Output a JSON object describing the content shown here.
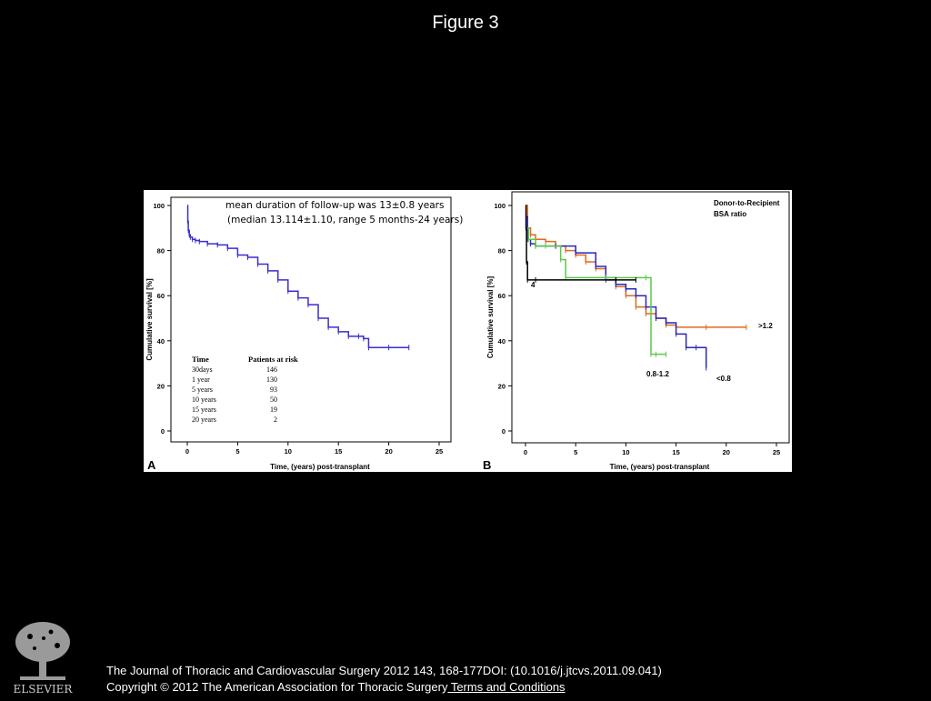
{
  "header": {
    "title": "Figure 3"
  },
  "chart_data": [
    {
      "panel": "A",
      "type": "line",
      "title": "mean duration of follow-up was 13±0.8 years",
      "subtitle": "(median 13.114±1.10, range 5 months-24 years)",
      "xlabel": "Time, (years) post-transplant",
      "ylabel": "Cumulative survival [%]",
      "xlim": [
        0,
        25
      ],
      "ylim": [
        0,
        100
      ],
      "xticks": [
        0,
        5,
        10,
        15,
        20,
        25
      ],
      "yticks": [
        0,
        20,
        40,
        60,
        80,
        100
      ],
      "series": [
        {
          "color": "#3a2fcc",
          "x": [
            0,
            0.05,
            0.1,
            0.2,
            0.3,
            0.5,
            0.8,
            1.2,
            2,
            3,
            4,
            5,
            6,
            7,
            8,
            9,
            10,
            11,
            12,
            13,
            14,
            15,
            16,
            17,
            17.5,
            18,
            20,
            22
          ],
          "y": [
            100,
            93,
            89,
            87,
            86,
            85,
            84.5,
            84,
            83,
            82.5,
            81,
            78,
            77,
            74,
            71,
            67,
            62,
            59,
            56,
            50,
            46,
            44,
            42,
            42,
            41,
            37,
            37,
            37
          ]
        }
      ],
      "risk_table": {
        "header": [
          "Time",
          "Patients at risk"
        ],
        "rows": [
          [
            "30days",
            "146"
          ],
          [
            "1 year",
            "130"
          ],
          [
            "5 years",
            "93"
          ],
          [
            "10 years",
            "50"
          ],
          [
            "15 years",
            "19"
          ],
          [
            "20 years",
            "2"
          ]
        ]
      }
    },
    {
      "panel": "B",
      "type": "line",
      "legend_title_1": "Donor-to-Recipient",
      "legend_title_2": "BSA ratio",
      "xlabel": "Time, (years) post-transplant",
      "ylabel": "Cumulative survival [%]",
      "xlim": [
        0,
        25
      ],
      "ylim": [
        0,
        100
      ],
      "xticks": [
        0,
        5,
        10,
        15,
        20,
        25
      ],
      "yticks": [
        0,
        20,
        40,
        60,
        80,
        100
      ],
      "series": [
        {
          "name": ">1.2",
          "color": "#e06a1e",
          "x": [
            0,
            0.2,
            0.5,
            1,
            2,
            3,
            4,
            5,
            6,
            7,
            8,
            9,
            10,
            11,
            12,
            13,
            14,
            15,
            18,
            22
          ],
          "y": [
            100,
            90,
            87,
            85,
            84,
            82,
            80,
            78,
            75,
            72,
            68,
            64,
            60,
            55,
            52,
            50,
            47,
            46,
            46,
            46
          ]
        },
        {
          "name": "<0.8",
          "color": "#2a27b8",
          "x": [
            0,
            0.2,
            0.5,
            1,
            3,
            5,
            7,
            8,
            9,
            10,
            11,
            12,
            13,
            14,
            15,
            16,
            17,
            18
          ],
          "y": [
            95,
            85,
            83,
            82,
            82,
            79,
            73,
            67,
            65,
            63,
            60,
            55,
            50,
            48,
            43,
            37,
            37,
            28
          ]
        },
        {
          "name": "0.8-1.2",
          "color": "#5cc84a",
          "x": [
            0,
            0.3,
            1,
            2,
            3.5,
            4,
            8,
            12,
            12.5,
            13,
            14
          ],
          "y": [
            90,
            85,
            82,
            82,
            76,
            68,
            68,
            68,
            34,
            34,
            34
          ]
        },
        {
          "name": "4",
          "color": "#000000",
          "x": [
            0,
            0.05,
            0.1,
            0.2,
            1,
            9,
            11
          ],
          "y": [
            100,
            90,
            75,
            67,
            67,
            67,
            67
          ]
        }
      ]
    }
  ],
  "panel_labels": {
    "a": "A",
    "b": "B"
  },
  "logo": {
    "text": "ELSEVIER"
  },
  "citation": {
    "line1": "The Journal of Thoracic and Cardiovascular Surgery 2012 143, 168-177DOI: (10.1016/j.jtcvs.2011.09.041)",
    "line2": "Copyright © 2012 The American Association for Thoracic Surgery",
    "link": " Terms and Conditions"
  }
}
